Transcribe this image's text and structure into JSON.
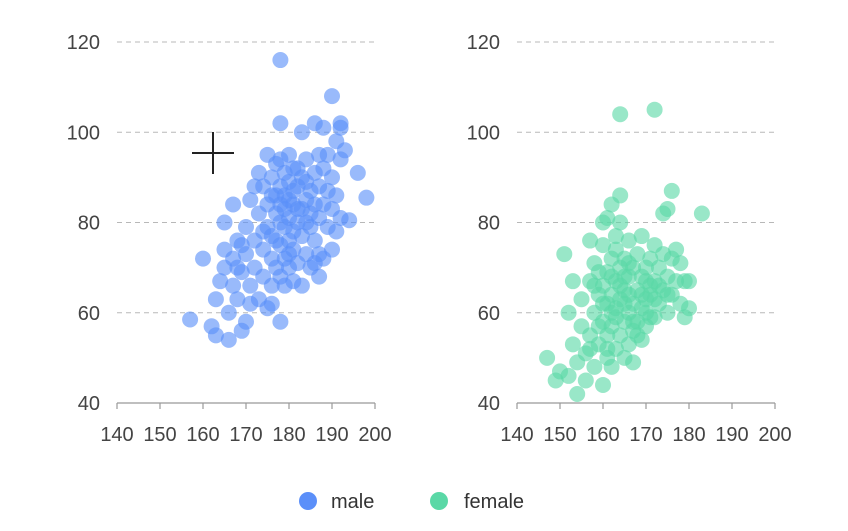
{
  "chart_data": [
    {
      "type": "scatter",
      "panel": "left",
      "series_name": "male",
      "color": "#5B8FF9",
      "xlim": [
        140,
        200
      ],
      "ylim": [
        40,
        120
      ],
      "xticks": [
        "140",
        "150",
        "160",
        "170",
        "180",
        "190",
        "200"
      ],
      "yticks": [
        "40",
        "60",
        "80",
        "100",
        "120"
      ],
      "points": [
        [
          157,
          58.5
        ],
        [
          160,
          72
        ],
        [
          162,
          57
        ],
        [
          163,
          55
        ],
        [
          163,
          63
        ],
        [
          164,
          67
        ],
        [
          165,
          70
        ],
        [
          165,
          74
        ],
        [
          166,
          60
        ],
        [
          166,
          54
        ],
        [
          167,
          66
        ],
        [
          167,
          72
        ],
        [
          168,
          76
        ],
        [
          168,
          63
        ],
        [
          169,
          56
        ],
        [
          169,
          69
        ],
        [
          170,
          58
        ],
        [
          170,
          73
        ],
        [
          170,
          79
        ],
        [
          171,
          66
        ],
        [
          171,
          85
        ],
        [
          172,
          70
        ],
        [
          172,
          76
        ],
        [
          173,
          63
        ],
        [
          173,
          82
        ],
        [
          173,
          91
        ],
        [
          174,
          68
        ],
        [
          174,
          74
        ],
        [
          174,
          88
        ],
        [
          175,
          61
        ],
        [
          175,
          79
        ],
        [
          175,
          84
        ],
        [
          176,
          66
        ],
        [
          176,
          72
        ],
        [
          176,
          90
        ],
        [
          176,
          77
        ],
        [
          177,
          70
        ],
        [
          177,
          82
        ],
        [
          177,
          86
        ],
        [
          177,
          93
        ],
        [
          178,
          58
        ],
        [
          178,
          68
        ],
        [
          178,
          75
        ],
        [
          178,
          80
        ],
        [
          178,
          84
        ],
        [
          178,
          88
        ],
        [
          178,
          102
        ],
        [
          178,
          116
        ],
        [
          179,
          72
        ],
        [
          179,
          79
        ],
        [
          179,
          83
        ],
        [
          179,
          86
        ],
        [
          179,
          91
        ],
        [
          180,
          70
        ],
        [
          180,
          76
        ],
        [
          180,
          81
        ],
        [
          180,
          85
        ],
        [
          180,
          89
        ],
        [
          180,
          95
        ],
        [
          181,
          67
        ],
        [
          181,
          74
        ],
        [
          181,
          78
        ],
        [
          181,
          84
        ],
        [
          181,
          87
        ],
        [
          182,
          71
        ],
        [
          182,
          80
        ],
        [
          182,
          88
        ],
        [
          182,
          92
        ],
        [
          183,
          66
        ],
        [
          183,
          77
        ],
        [
          183,
          83
        ],
        [
          183,
          100
        ],
        [
          184,
          73
        ],
        [
          184,
          80
        ],
        [
          184,
          85
        ],
        [
          184,
          94
        ],
        [
          185,
          70
        ],
        [
          185,
          82
        ],
        [
          185,
          87
        ],
        [
          186,
          76
        ],
        [
          186,
          84
        ],
        [
          186,
          91
        ],
        [
          186,
          102
        ],
        [
          187,
          73
        ],
        [
          187,
          81
        ],
        [
          187,
          88
        ],
        [
          187,
          95
        ],
        [
          188,
          72
        ],
        [
          188,
          84
        ],
        [
          188,
          92
        ],
        [
          188,
          101
        ],
        [
          189,
          79
        ],
        [
          189,
          87
        ],
        [
          190,
          74
        ],
        [
          190,
          83
        ],
        [
          190,
          90
        ],
        [
          190,
          108
        ],
        [
          191,
          86
        ],
        [
          191,
          98
        ],
        [
          192,
          81
        ],
        [
          192,
          94
        ],
        [
          192,
          101
        ],
        [
          192,
          102
        ],
        [
          193,
          96
        ],
        [
          194,
          80.5
        ],
        [
          196,
          91
        ],
        [
          198,
          85.5
        ],
        [
          167,
          84
        ],
        [
          169,
          75
        ],
        [
          171,
          62
        ],
        [
          172,
          88
        ],
        [
          175,
          95
        ],
        [
          176,
          62
        ],
        [
          177,
          76
        ],
        [
          179,
          66
        ],
        [
          181,
          92
        ],
        [
          183,
          90
        ],
        [
          185,
          79
        ],
        [
          187,
          68
        ],
        [
          165,
          80
        ],
        [
          174,
          78
        ],
        [
          176,
          86
        ],
        [
          178,
          94
        ],
        [
          180,
          73
        ],
        [
          182,
          83
        ],
        [
          184,
          89
        ],
        [
          186,
          71
        ],
        [
          189,
          95
        ],
        [
          191,
          78
        ],
        [
          168,
          70
        ]
      ]
    },
    {
      "type": "scatter",
      "panel": "right",
      "series_name": "female",
      "color": "#5AD8A6",
      "xlim": [
        140,
        200
      ],
      "ylim": [
        40,
        120
      ],
      "xticks": [
        "140",
        "150",
        "160",
        "170",
        "180",
        "190",
        "200"
      ],
      "yticks": [
        "40",
        "60",
        "80",
        "100",
        "120"
      ],
      "points": [
        [
          147,
          50
        ],
        [
          149,
          45
        ],
        [
          150,
          47
        ],
        [
          151,
          73
        ],
        [
          152,
          60
        ],
        [
          152,
          46
        ],
        [
          153,
          53
        ],
        [
          153,
          67
        ],
        [
          154,
          42
        ],
        [
          154,
          49
        ],
        [
          155,
          57
        ],
        [
          155,
          63
        ],
        [
          156,
          51
        ],
        [
          156,
          45
        ],
        [
          157,
          55
        ],
        [
          157,
          67
        ],
        [
          157,
          76
        ],
        [
          158,
          60
        ],
        [
          158,
          48
        ],
        [
          158,
          71
        ],
        [
          159,
          53
        ],
        [
          159,
          64
        ],
        [
          159,
          57
        ],
        [
          160,
          44
        ],
        [
          160,
          58
        ],
        [
          160,
          66
        ],
        [
          160,
          75
        ],
        [
          160,
          80
        ],
        [
          161,
          50
        ],
        [
          161,
          55
        ],
        [
          161,
          62
        ],
        [
          161,
          69
        ],
        [
          161,
          81
        ],
        [
          162,
          48
        ],
        [
          162,
          57
        ],
        [
          162,
          64
        ],
        [
          162,
          72
        ],
        [
          162,
          84
        ],
        [
          163,
          52
        ],
        [
          163,
          59
        ],
        [
          163,
          67
        ],
        [
          163,
          74
        ],
        [
          163,
          61
        ],
        [
          164,
          55
        ],
        [
          164,
          63
        ],
        [
          164,
          70
        ],
        [
          164,
          80
        ],
        [
          164,
          86
        ],
        [
          164,
          104
        ],
        [
          165,
          50
        ],
        [
          165,
          58
        ],
        [
          165,
          65
        ],
        [
          165,
          72
        ],
        [
          166,
          53
        ],
        [
          166,
          60
        ],
        [
          166,
          68
        ],
        [
          166,
          76
        ],
        [
          167,
          56
        ],
        [
          167,
          62
        ],
        [
          167,
          70
        ],
        [
          167,
          49
        ],
        [
          168,
          58
        ],
        [
          168,
          65
        ],
        [
          168,
          73
        ],
        [
          169,
          54
        ],
        [
          169,
          61
        ],
        [
          169,
          68
        ],
        [
          169,
          77
        ],
        [
          170,
          57
        ],
        [
          170,
          63
        ],
        [
          170,
          70
        ],
        [
          170,
          60
        ],
        [
          171,
          64
        ],
        [
          171,
          72
        ],
        [
          171,
          66
        ],
        [
          172,
          59
        ],
        [
          172,
          67
        ],
        [
          172,
          75
        ],
        [
          172,
          105
        ],
        [
          173,
          62
        ],
        [
          173,
          70
        ],
        [
          174,
          65
        ],
        [
          174,
          73
        ],
        [
          174,
          82
        ],
        [
          175,
          60
        ],
        [
          175,
          68
        ],
        [
          175,
          83
        ],
        [
          176,
          64
        ],
        [
          176,
          72
        ],
        [
          176,
          87
        ],
        [
          177,
          67
        ],
        [
          177,
          74
        ],
        [
          178,
          62
        ],
        [
          178,
          71
        ],
        [
          179,
          59
        ],
        [
          179,
          67
        ],
        [
          180,
          61
        ],
        [
          180,
          67
        ],
        [
          183,
          82
        ],
        [
          157,
          52
        ],
        [
          159,
          69
        ],
        [
          161,
          52
        ],
        [
          163,
          77
        ],
        [
          165,
          62
        ],
        [
          166,
          64
        ],
        [
          168,
          55
        ],
        [
          170,
          67
        ],
        [
          172,
          63
        ],
        [
          158,
          66
        ],
        [
          162,
          60
        ],
        [
          164,
          66
        ],
        [
          166,
          71
        ],
        [
          167,
          58
        ],
        [
          169,
          64
        ],
        [
          171,
          59
        ],
        [
          173,
          66
        ],
        [
          175,
          64
        ],
        [
          160,
          62
        ],
        [
          162,
          68
        ],
        [
          165,
          68
        ]
      ]
    }
  ],
  "legend": [
    {
      "label": "male",
      "color": "#5B8FF9"
    },
    {
      "label": "female",
      "color": "#5AD8A6"
    }
  ]
}
